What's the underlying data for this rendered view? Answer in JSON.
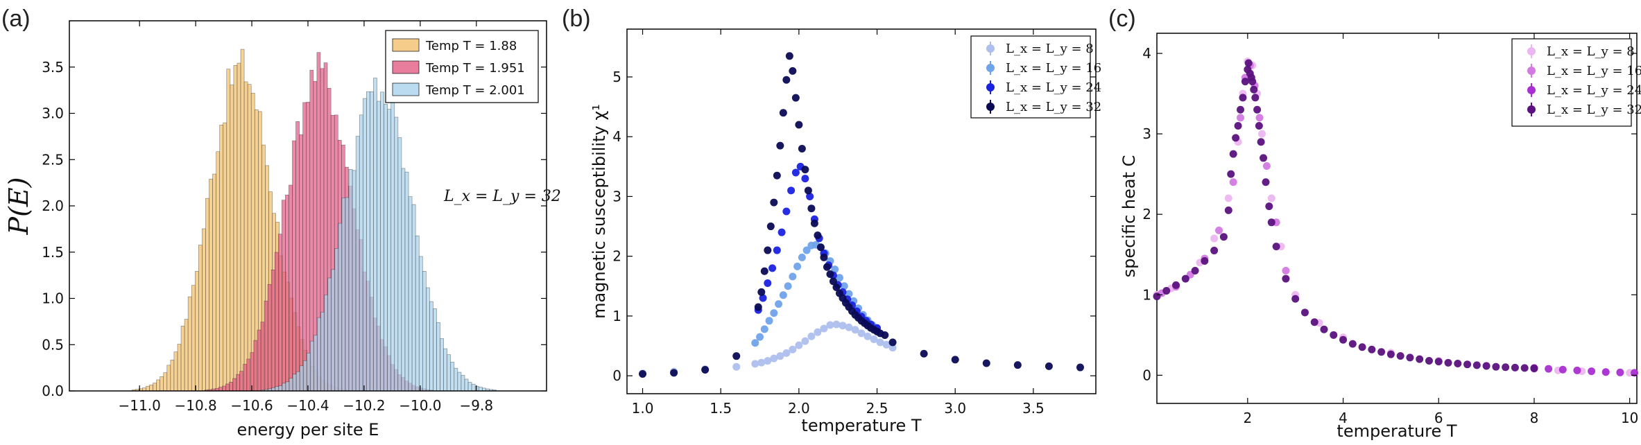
{
  "chart_data": [
    {
      "panel_label": "(a)",
      "type": "histogram",
      "xlabel": "energy per site E",
      "ylabel": "P(E)",
      "xlim": [
        -11.25,
        -9.55
      ],
      "ylim": [
        0,
        4.0
      ],
      "xticks": [
        "−11.0",
        "−10.8",
        "−10.6",
        "−10.4",
        "−10.2",
        "−10.0",
        "−9.8"
      ],
      "xtick_values": [
        -11.0,
        -10.8,
        -10.6,
        -10.4,
        -10.2,
        -10.0,
        -9.8
      ],
      "yticks": [
        "0.0",
        "0.5",
        "1.0",
        "1.5",
        "2.0",
        "2.5",
        "3.0",
        "3.5"
      ],
      "ytick_values": [
        0,
        0.5,
        1.0,
        1.5,
        2.0,
        2.5,
        3.0,
        3.5
      ],
      "annotation": "L_x = L_y = 32",
      "legend_position": "top-right",
      "series": [
        {
          "name": "Temp T = 1.88",
          "mean": -10.64,
          "std": 0.113,
          "peak": 3.5,
          "color": "#f2bf6b"
        },
        {
          "name": "Temp T = 1.951",
          "mean": -10.36,
          "std": 0.118,
          "peak": 3.45,
          "color": "#e35d86"
        },
        {
          "name": "Temp T = 2.001",
          "mean": -10.15,
          "std": 0.123,
          "peak": 3.25,
          "color": "#a9d2ec"
        }
      ]
    },
    {
      "panel_label": "(b)",
      "type": "scatter",
      "xlabel": "temperature T",
      "ylabel": "magnetic susceptibility χ¹",
      "xlim": [
        0.9,
        3.9
      ],
      "ylim": [
        -0.3,
        5.8
      ],
      "xticks": [
        "1.0",
        "1.5",
        "2.0",
        "2.5",
        "3.0",
        "3.5"
      ],
      "xtick_values": [
        1.0,
        1.5,
        2.0,
        2.5,
        3.0,
        3.5
      ],
      "yticks": [
        "0",
        "1",
        "2",
        "3",
        "4",
        "5"
      ],
      "ytick_values": [
        0,
        1,
        2,
        3,
        4,
        5
      ],
      "legend_position": "top-right",
      "series": [
        {
          "name": "L_x = L_y = 8",
          "color": "#aebfee",
          "x": [
            1.0,
            1.2,
            1.4,
            1.6,
            1.72,
            1.76,
            1.8,
            1.84,
            1.88,
            1.92,
            1.96,
            2.0,
            2.04,
            2.08,
            2.12,
            2.16,
            2.2,
            2.24,
            2.28,
            2.32,
            2.36,
            2.4,
            2.44,
            2.48,
            2.52,
            2.56,
            2.6
          ],
          "y": [
            0.04,
            0.07,
            0.11,
            0.15,
            0.2,
            0.22,
            0.25,
            0.29,
            0.33,
            0.38,
            0.44,
            0.51,
            0.58,
            0.66,
            0.73,
            0.79,
            0.85,
            0.86,
            0.84,
            0.81,
            0.77,
            0.71,
            0.66,
            0.61,
            0.56,
            0.52,
            0.47
          ]
        },
        {
          "name": "L_x = L_y = 16",
          "color": "#6fa3ea",
          "x": [
            1.72,
            1.75,
            1.78,
            1.81,
            1.84,
            1.87,
            1.9,
            1.93,
            1.96,
            1.99,
            2.02,
            2.05,
            2.08,
            2.11,
            2.14,
            2.17,
            2.2,
            2.23,
            2.26,
            2.29,
            2.32,
            2.35,
            2.38,
            2.41,
            2.44,
            2.47,
            2.5
          ],
          "y": [
            0.55,
            0.65,
            0.78,
            0.92,
            1.05,
            1.2,
            1.35,
            1.5,
            1.66,
            1.83,
            1.98,
            2.1,
            2.18,
            2.19,
            2.15,
            2.05,
            1.92,
            1.78,
            1.64,
            1.5,
            1.37,
            1.25,
            1.13,
            1.02,
            0.93,
            0.85,
            0.78
          ]
        },
        {
          "name": "L_x = L_y = 24",
          "color": "#1a22e0",
          "x": [
            1.74,
            1.77,
            1.8,
            1.83,
            1.86,
            1.89,
            1.92,
            1.95,
            1.98,
            2.01,
            2.04,
            2.07,
            2.1,
            2.13,
            2.16,
            2.19,
            2.22,
            2.25,
            2.28,
            2.31,
            2.34,
            2.37,
            2.4,
            2.43,
            2.46,
            2.5
          ],
          "y": [
            1.1,
            1.3,
            1.55,
            1.8,
            2.1,
            2.4,
            2.75,
            3.1,
            3.4,
            3.5,
            3.3,
            3.0,
            2.62,
            2.3,
            2.05,
            1.85,
            1.68,
            1.52,
            1.4,
            1.28,
            1.18,
            1.08,
            0.99,
            0.92,
            0.86,
            0.8
          ]
        },
        {
          "name": "L_x = L_y = 32",
          "color": "#0b0b55",
          "x": [
            1.0,
            1.2,
            1.4,
            1.6,
            1.74,
            1.76,
            1.78,
            1.8,
            1.82,
            1.84,
            1.86,
            1.88,
            1.9,
            1.92,
            1.94,
            1.96,
            1.98,
            2.0,
            2.02,
            2.04,
            2.06,
            2.08,
            2.1,
            2.12,
            2.14,
            2.16,
            2.18,
            2.2,
            2.22,
            2.24,
            2.26,
            2.28,
            2.3,
            2.32,
            2.34,
            2.36,
            2.38,
            2.4,
            2.42,
            2.44,
            2.46,
            2.48,
            2.5,
            2.52,
            2.55,
            2.6,
            2.8,
            3.0,
            3.2,
            3.4,
            3.6,
            3.8
          ],
          "y": [
            0.03,
            0.05,
            0.1,
            0.33,
            1.15,
            1.4,
            1.75,
            2.1,
            2.5,
            2.9,
            3.35,
            3.85,
            4.4,
            4.95,
            5.35,
            5.1,
            4.65,
            4.2,
            3.8,
            3.45,
            3.1,
            2.8,
            2.55,
            2.35,
            2.15,
            1.98,
            1.82,
            1.7,
            1.58,
            1.48,
            1.38,
            1.3,
            1.22,
            1.15,
            1.08,
            1.02,
            0.97,
            0.92,
            0.88,
            0.84,
            0.8,
            0.77,
            0.74,
            0.71,
            0.68,
            0.56,
            0.37,
            0.27,
            0.21,
            0.18,
            0.16,
            0.14
          ]
        }
      ]
    },
    {
      "panel_label": "(c)",
      "type": "scatter",
      "xlabel": "temperature T",
      "ylabel": "specific heat C",
      "xlim": [
        0.1,
        10.15
      ],
      "ylim": [
        -0.35,
        4.25
      ],
      "xticks": [
        "2",
        "4",
        "6",
        "8",
        "10"
      ],
      "xtick_values": [
        2,
        4,
        6,
        8,
        10
      ],
      "yticks": [
        "0",
        "1",
        "2",
        "3",
        "4"
      ],
      "ytick_values": [
        0,
        1,
        2,
        3,
        4
      ],
      "legend_position": "top-right",
      "series": [
        {
          "name": "L_x = L_y = 8",
          "color": "#ecb7f0",
          "x": [
            0.1,
            0.4,
            0.7,
            1.0,
            1.3,
            1.6,
            1.8,
            1.9,
            2.0,
            2.1,
            2.2,
            2.3,
            2.5,
            2.7,
            3.0,
            3.5,
            4.0,
            5.0,
            6.0,
            7.0,
            8.0,
            8.5,
            9.0,
            9.5,
            10.0
          ],
          "y": [
            1.0,
            1.08,
            1.2,
            1.4,
            1.7,
            2.2,
            2.9,
            3.5,
            3.9,
            3.85,
            3.5,
            3.0,
            2.2,
            1.6,
            1.0,
            0.65,
            0.47,
            0.28,
            0.18,
            0.12,
            0.08,
            0.06,
            0.05,
            0.04,
            0.03
          ]
        },
        {
          "name": "L_x = L_y = 16",
          "color": "#d27ae2",
          "x": [
            0.2,
            0.5,
            0.8,
            1.1,
            1.4,
            1.7,
            1.85,
            1.95,
            2.05,
            2.15,
            2.25,
            2.4,
            2.6,
            2.8
          ],
          "y": [
            1.02,
            1.1,
            1.25,
            1.45,
            1.8,
            2.4,
            3.2,
            3.7,
            3.85,
            3.6,
            3.2,
            2.6,
            1.9,
            1.3
          ]
        },
        {
          "name": "L_x = L_y = 24",
          "color": "#a92fd0",
          "x": [
            8.0,
            8.3,
            8.6,
            8.9,
            9.2,
            9.5,
            9.8,
            10.1
          ],
          "y": [
            0.09,
            0.08,
            0.07,
            0.06,
            0.05,
            0.04,
            0.035,
            0.03
          ]
        },
        {
          "name": "L_x = L_y = 32",
          "color": "#5b1280",
          "x": [
            0.1,
            0.3,
            0.5,
            0.7,
            0.9,
            1.1,
            1.3,
            1.5,
            1.6,
            1.65,
            1.7,
            1.75,
            1.8,
            1.85,
            1.9,
            1.95,
            2.0,
            2.02,
            2.05,
            2.08,
            2.1,
            2.13,
            2.16,
            2.2,
            2.24,
            2.28,
            2.33,
            2.38,
            2.45,
            2.5,
            2.6,
            2.8,
            3.0,
            3.2,
            3.4,
            3.6,
            3.8,
            4.0,
            4.2,
            4.4,
            4.6,
            4.8,
            5.0,
            5.2,
            5.4,
            5.6,
            5.8,
            6.0,
            6.2,
            6.4,
            6.6,
            6.8,
            7.0,
            7.2,
            7.4,
            7.6,
            7.8,
            8.0
          ],
          "y": [
            0.98,
            1.05,
            1.12,
            1.2,
            1.3,
            1.42,
            1.55,
            1.72,
            2.05,
            2.5,
            2.75,
            2.95,
            3.1,
            3.3,
            3.45,
            3.65,
            3.8,
            3.88,
            3.75,
            3.7,
            3.65,
            3.55,
            3.45,
            3.3,
            3.1,
            2.9,
            2.7,
            2.4,
            2.1,
            1.9,
            1.6,
            1.2,
            0.95,
            0.78,
            0.66,
            0.57,
            0.5,
            0.44,
            0.39,
            0.35,
            0.32,
            0.29,
            0.26,
            0.24,
            0.22,
            0.2,
            0.18,
            0.17,
            0.155,
            0.145,
            0.135,
            0.125,
            0.115,
            0.105,
            0.1,
            0.095,
            0.09,
            0.085
          ]
        }
      ]
    }
  ]
}
